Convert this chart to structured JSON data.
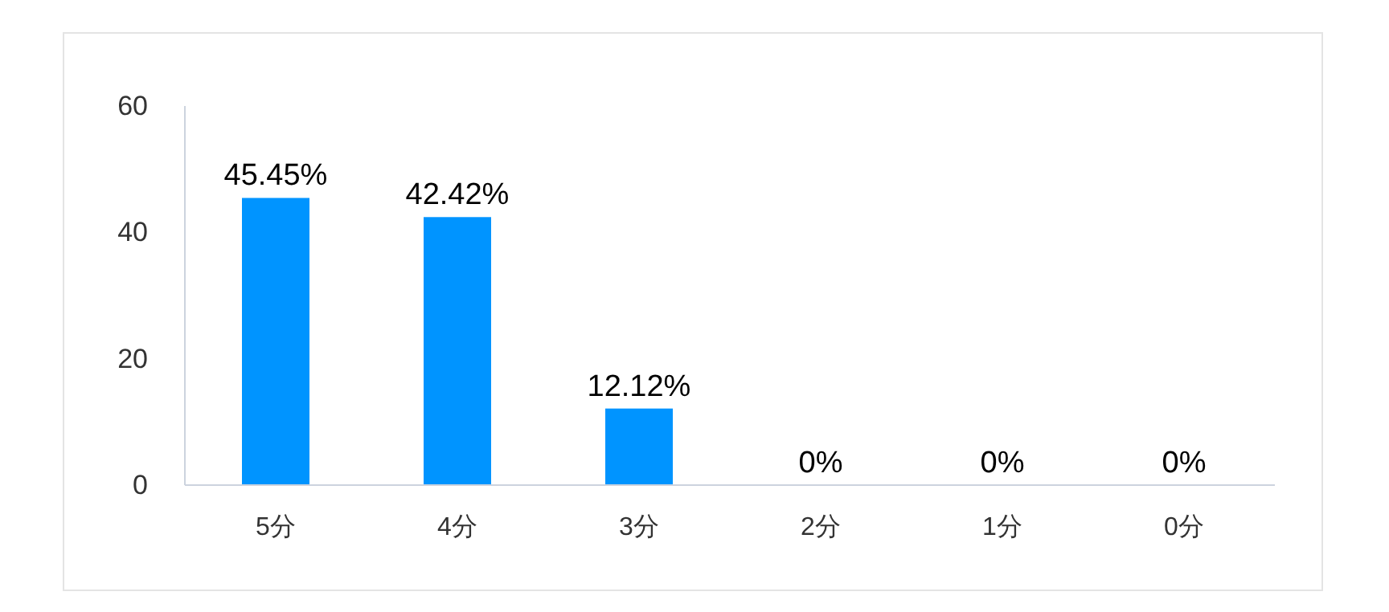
{
  "chart_data": {
    "type": "bar",
    "categories": [
      "5分",
      "4分",
      "3分",
      "2分",
      "1分",
      "0分"
    ],
    "values": [
      45.45,
      42.42,
      12.12,
      0,
      0,
      0
    ],
    "value_labels": [
      "45.45%",
      "42.42%",
      "12.12%",
      "0%",
      "0%",
      "0%"
    ],
    "color": "#0094ff",
    "ylim": [
      0,
      60
    ],
    "yticks": [
      0,
      20,
      40,
      60
    ],
    "grid": false
  }
}
